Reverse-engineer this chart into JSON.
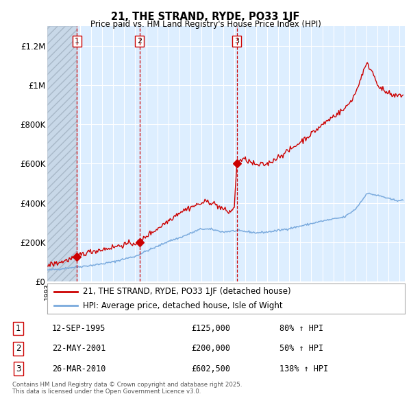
{
  "title1": "21, THE STRAND, RYDE, PO33 1JF",
  "title2": "Price paid vs. HM Land Registry's House Price Index (HPI)",
  "legend1": "21, THE STRAND, RYDE, PO33 1JF (detached house)",
  "legend2": "HPI: Average price, detached house, Isle of Wight",
  "sale_labels": [
    "1",
    "2",
    "3"
  ],
  "sale_dates_label": [
    "12-SEP-1995",
    "22-MAY-2001",
    "26-MAR-2010"
  ],
  "sale_prices_label": [
    "£125,000",
    "£200,000",
    "£602,500"
  ],
  "sale_pct_label": [
    "80% ↑ HPI",
    "50% ↑ HPI",
    "138% ↑ HPI"
  ],
  "sale_dates_num": [
    1995.7,
    2001.38,
    2010.23
  ],
  "sale_prices": [
    125000,
    200000,
    602500
  ],
  "red_color": "#cc0000",
  "blue_color": "#7aaadd",
  "background_color": "#ddeeff",
  "grid_color": "#ffffff",
  "vline_color": "#cc0000",
  "footnote": "Contains HM Land Registry data © Crown copyright and database right 2025.\nThis data is licensed under the Open Government Licence v3.0.",
  "ylim": [
    0,
    1300000
  ],
  "yticks": [
    0,
    200000,
    400000,
    600000,
    800000,
    1000000,
    1200000
  ],
  "ytick_labels": [
    "£0",
    "£200K",
    "£400K",
    "£600K",
    "£800K",
    "£1M",
    "£1.2M"
  ],
  "xlim_start": 1993.0,
  "xlim_end": 2025.5
}
